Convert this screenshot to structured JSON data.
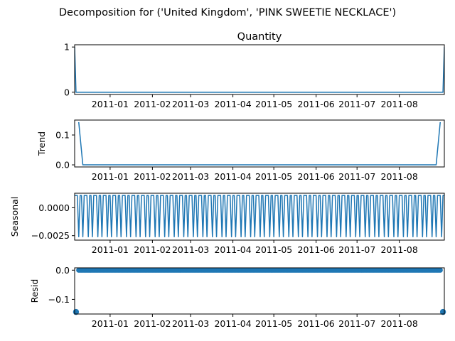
{
  "figure": {
    "suptitle": "Decomposition for ('United Kingdom', 'PINK SWEETIE NECKLACE')"
  },
  "chart_data": [
    {
      "type": "line",
      "id": "quantity",
      "title": "Quantity",
      "ylabel": "",
      "xlim": [
        "2010-12-06",
        "2011-09-03"
      ],
      "ylim": [
        -0.05,
        1.05
      ],
      "xticks": [
        "2011-01",
        "2011-02",
        "2011-03",
        "2011-04",
        "2011-05",
        "2011-06",
        "2011-07",
        "2011-08"
      ],
      "yticks": [
        0,
        1
      ],
      "ytick_labels": [
        "0",
        "1"
      ],
      "series": [
        {
          "x": [
            "2010-12-06",
            "2010-12-07",
            "2011-09-02",
            "2011-09-03"
          ],
          "y": [
            1,
            0,
            0,
            1
          ]
        }
      ]
    },
    {
      "type": "line",
      "id": "trend",
      "title": "",
      "ylabel": "Trend",
      "xlim": [
        "2010-12-06",
        "2011-09-03"
      ],
      "ylim": [
        -0.007,
        0.15
      ],
      "xticks": [
        "2011-01",
        "2011-02",
        "2011-03",
        "2011-04",
        "2011-05",
        "2011-06",
        "2011-07",
        "2011-08"
      ],
      "yticks": [
        0.0,
        0.1
      ],
      "ytick_labels": [
        "0.0",
        "0.1"
      ],
      "series": [
        {
          "x": [
            "2010-12-09",
            "2010-12-12",
            "2011-08-28",
            "2011-08-31"
          ],
          "y": [
            0.143,
            0.0,
            0.0,
            0.143
          ]
        }
      ]
    },
    {
      "type": "line",
      "id": "seasonal",
      "title": "",
      "ylabel": "Seasonal",
      "xlim": [
        "2010-12-06",
        "2011-09-03"
      ],
      "ylim": [
        -0.0029,
        0.0013
      ],
      "xticks": [
        "2011-01",
        "2011-02",
        "2011-03",
        "2011-04",
        "2011-05",
        "2011-06",
        "2011-07",
        "2011-08"
      ],
      "yticks": [
        0.0,
        -0.0025
      ],
      "ytick_labels": [
        "0.0000",
        "−0.0025"
      ],
      "period_days": 7,
      "pattern": [
        0.0011,
        0.0011,
        0.0011,
        -0.0026,
        0.0011,
        0.0011,
        -0.0026
      ],
      "series": []
    },
    {
      "type": "scatter",
      "id": "resid",
      "title": "",
      "ylabel": "Resid",
      "xlim": [
        "2010-12-06",
        "2011-09-03"
      ],
      "ylim": [
        -0.15,
        0.008
      ],
      "xticks": [
        "2011-01",
        "2011-02",
        "2011-03",
        "2011-04",
        "2011-05",
        "2011-06",
        "2011-07",
        "2011-08"
      ],
      "yticks": [
        0.0,
        -0.1
      ],
      "ytick_labels": [
        "0.0",
        "−0.1"
      ],
      "baseline_value": 0.0,
      "baseline_range": [
        "2010-12-09",
        "2011-08-31"
      ],
      "series": [
        {
          "x": [
            "2010-12-07",
            "2011-09-02"
          ],
          "y": [
            -0.143,
            -0.143
          ]
        }
      ]
    }
  ]
}
